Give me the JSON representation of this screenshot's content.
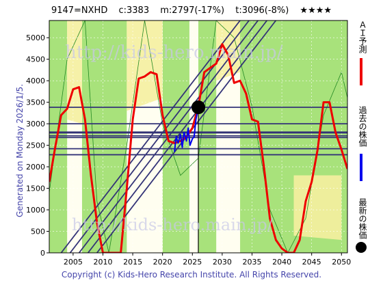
{
  "header": {
    "ticker": "9147=NXHD",
    "current": "c:3383",
    "mid": "m:2797(-17%)",
    "target": "t:3096(-8%)",
    "stars": "★★★★"
  },
  "side_legend": {
    "ai_forecast": "ＡＩ予測",
    "past_price": "過去の株価",
    "latest_price": "最新の株価"
  },
  "generated": "Generated on Monday 2026/1/5.",
  "watermark": "http://kids-hero.main.jp/",
  "copyright": "Copyright (c) Kids-Hero Research Institute. All Rights Reserved.",
  "colors": {
    "forecast": "#ee0000",
    "past": "#0000ee",
    "latest": "#000000",
    "channel": "#333377",
    "band_green": "#99dd66",
    "band_yellow": "#f5f0a0"
  },
  "chart_data": {
    "type": "line",
    "xlim": [
      2001,
      2051
    ],
    "ylim": [
      0,
      5400
    ],
    "x_ticks": [
      2005,
      2010,
      2015,
      2020,
      2025,
      2030,
      2035,
      2040,
      2045,
      2050
    ],
    "y_ticks": [
      0,
      500,
      1000,
      1500,
      2000,
      2500,
      3000,
      3500,
      4000,
      4500,
      5000
    ],
    "horizontal_levels": [
      3383,
      3000,
      2797,
      2720,
      2680,
      2420,
      2280
    ],
    "series": [
      {
        "role": "forecast",
        "x": [
          2001,
          2002,
          2003,
          2004,
          2005,
          2006,
          2007,
          2008,
          2009,
          2010,
          2013,
          2014,
          2015,
          2016,
          2017,
          2018,
          2019,
          2020,
          2021,
          2022,
          2023,
          2024,
          2025,
          2026,
          2027,
          2028,
          2029,
          2030,
          2031,
          2032,
          2033,
          2034,
          2035,
          2036,
          2037,
          2038,
          2039,
          2040,
          2041,
          2042,
          2043,
          2044,
          2045,
          2046,
          2047,
          2048,
          2049,
          2050,
          2051
        ],
        "y": [
          1650,
          2450,
          3200,
          3350,
          3800,
          3850,
          3100,
          1800,
          700,
          0,
          0,
          1500,
          3100,
          4050,
          4100,
          4200,
          4150,
          3200,
          2600,
          2550,
          2600,
          2700,
          2900,
          3400,
          4200,
          4300,
          4400,
          4850,
          4600,
          3950,
          4000,
          3700,
          3100,
          3050,
          2000,
          800,
          300,
          100,
          0,
          0,
          300,
          1200,
          1650,
          2400,
          3500,
          3500,
          2800,
          2400,
          1950
        ]
      },
      {
        "role": "past",
        "x": [
          2022.0,
          2022.3,
          2022.6,
          2023.0,
          2023.3,
          2023.6,
          2024.0,
          2024.3,
          2024.6,
          2025.0,
          2025.3,
          2025.6,
          2026.0
        ],
        "y": [
          2350,
          2700,
          2550,
          2750,
          2450,
          2800,
          2600,
          2900,
          2500,
          2650,
          2700,
          3100,
          3383
        ]
      },
      {
        "role": "latest",
        "x": [
          2026.0
        ],
        "y": [
          3383
        ]
      }
    ],
    "channel_lines": [
      {
        "x": [
          2003,
          2033
        ],
        "y": [
          0,
          5400
        ]
      },
      {
        "x": [
          2004.5,
          2034.5
        ],
        "y": [
          0,
          5400
        ]
      },
      {
        "x": [
          2006,
          2036
        ],
        "y": [
          0,
          5400
        ]
      },
      {
        "x": [
          2007.5,
          2037.5
        ],
        "y": [
          0,
          5400
        ]
      },
      {
        "x": [
          2009,
          2039
        ],
        "y": [
          0,
          5400
        ]
      }
    ],
    "vertical_marker_x": 2026
  }
}
